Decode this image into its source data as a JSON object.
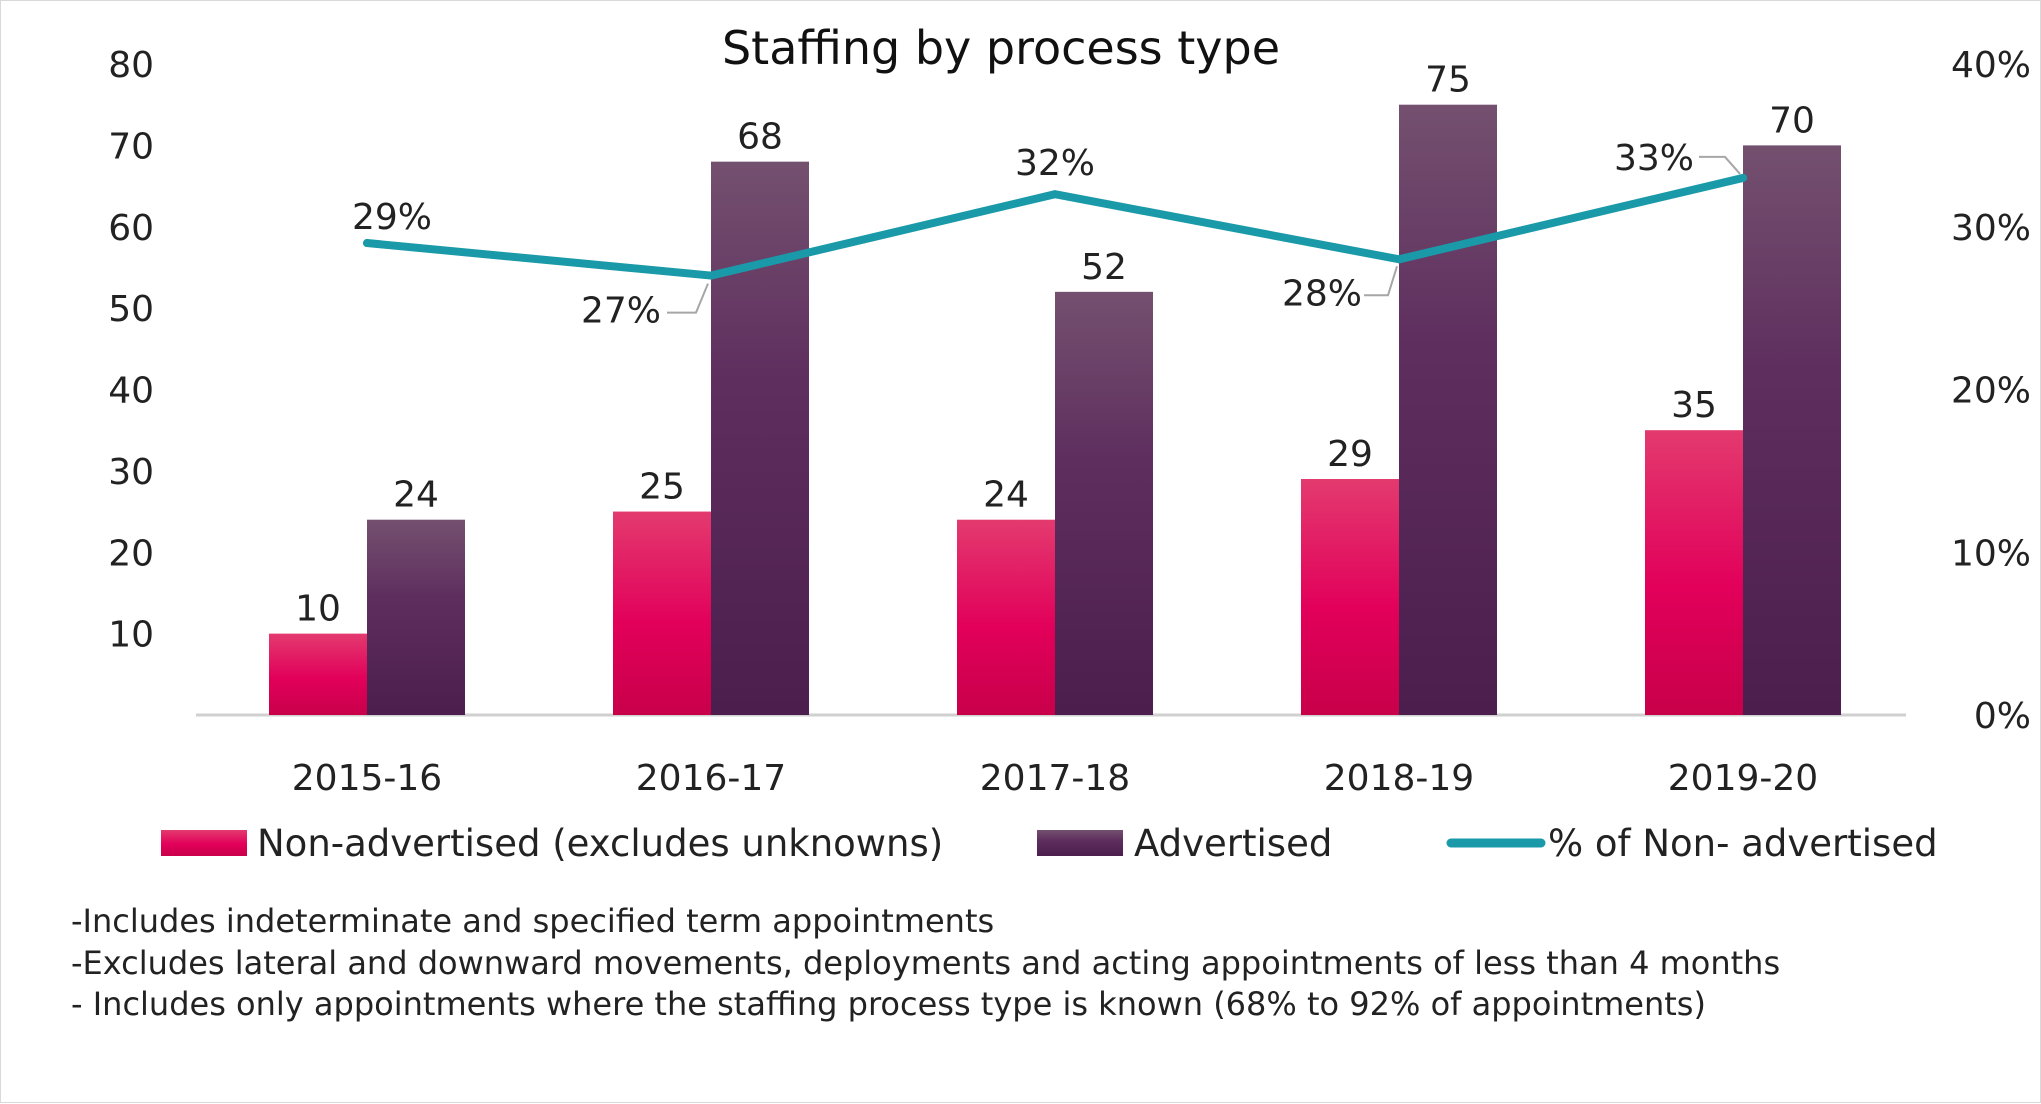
{
  "chart_data": {
    "type": "bar",
    "title": "Staffing by process type",
    "categories": [
      "2015-16",
      "2016-17",
      "2017-18",
      "2018-19",
      "2019-20"
    ],
    "series": [
      {
        "name": "Non-advertised (excludes unknowns)",
        "kind": "bar",
        "axis": "left",
        "color": "#e5004f",
        "values": [
          10,
          25,
          24,
          29,
          35
        ],
        "labels": [
          "10",
          "25",
          "24",
          "29",
          "35"
        ]
      },
      {
        "name": "Advertised",
        "kind": "bar",
        "axis": "left",
        "color": "#5e2a5c",
        "values": [
          24,
          68,
          52,
          75,
          70
        ],
        "labels": [
          "24",
          "68",
          "52",
          "75",
          "70"
        ]
      },
      {
        "name": "% of Non- advertised",
        "kind": "line",
        "axis": "right",
        "color": "#1a9aa8",
        "values": [
          0.29,
          0.27,
          0.32,
          0.28,
          0.33
        ],
        "labels": [
          "29%",
          "27%",
          "32%",
          "28%",
          "33%"
        ]
      }
    ],
    "y_left": {
      "min": 0,
      "max": 80,
      "ticks": [
        10,
        20,
        30,
        40,
        50,
        60,
        70,
        80
      ],
      "tick_labels": [
        "10",
        "20",
        "30",
        "40",
        "50",
        "60",
        "70",
        "80"
      ]
    },
    "y_right": {
      "min": 0,
      "max": 0.4,
      "ticks": [
        0,
        0.1,
        0.2,
        0.3,
        0.4
      ],
      "tick_labels": [
        "0%",
        "10%",
        "20%",
        "30%",
        "40%"
      ]
    },
    "grid": false,
    "legend_position": "bottom",
    "xlabel": "",
    "ylabel": ""
  },
  "notes": [
    "-Includes indeterminate and specified term appointments",
    "-Excludes lateral and downward movements, deployments and acting appointments  of less than 4 months",
    "- Includes only appointments where the staffing process type is known (68% to 92% of appointments)"
  ]
}
